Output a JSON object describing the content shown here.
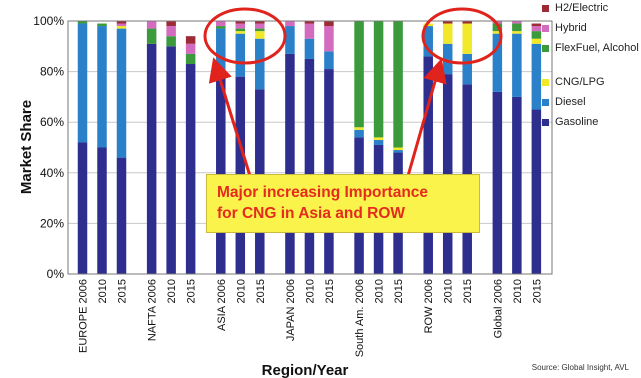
{
  "chart_data": {
    "type": "bar",
    "stacked": true,
    "ylabel": "Market Share",
    "xlabel": "Region/Year",
    "ylim": [
      0,
      100
    ],
    "yticks": [
      "0%",
      "20%",
      "40%",
      "60%",
      "80%",
      "100%"
    ],
    "grid": true,
    "legend_position": "right",
    "categories": [
      "EUROPE 2006",
      "2010",
      "2015",
      "NAFTA 2006",
      "2010",
      "2015",
      "ASIA 2006",
      "2010",
      "2015",
      "JAPAN 2006",
      "2010",
      "2015",
      "South Am. 2006",
      "2010",
      "2015",
      "ROW 2006",
      "2010",
      "2015",
      "Global 2006",
      "2010",
      "2015"
    ],
    "groups": [
      "EUROPE",
      "NAFTA",
      "ASIA",
      "JAPAN",
      "South Am.",
      "ROW",
      "Global"
    ],
    "series": [
      {
        "name": "Gasoline",
        "color": "#2e2e8e",
        "values": [
          52,
          50,
          46,
          91,
          90,
          83,
          80,
          78,
          73,
          87,
          85,
          81,
          54,
          51,
          48,
          86,
          79,
          75,
          72,
          70,
          65
        ]
      },
      {
        "name": "Diesel",
        "color": "#2a80c9",
        "values": [
          47,
          48,
          51,
          0,
          0,
          0,
          17,
          17,
          20,
          11,
          8,
          7,
          3,
          2,
          1,
          12,
          12,
          12,
          23,
          25,
          26
        ]
      },
      {
        "name": "CNG/LPG",
        "color": "#f2e82a",
        "values": [
          0,
          0,
          1,
          0,
          0,
          0,
          0,
          1,
          3,
          0,
          0,
          0,
          1,
          1,
          1,
          1,
          8,
          12,
          1,
          1,
          2
        ]
      },
      {
        "name": "FlexFuel, Alcohol",
        "color": "#3a9a3c",
        "values": [
          1,
          1,
          0,
          6,
          4,
          4,
          1,
          1,
          1,
          0,
          0,
          0,
          42,
          46,
          50,
          0,
          0,
          0,
          3,
          3,
          3
        ]
      },
      {
        "name": "Hybrid",
        "color": "#d36cbf",
        "values": [
          0,
          0,
          1,
          3,
          4,
          4,
          2,
          2,
          2,
          2,
          6,
          10,
          0,
          0,
          0,
          0,
          0,
          0,
          1,
          1,
          2
        ]
      },
      {
        "name": "H2/Electric",
        "color": "#9c2b35",
        "values": [
          0,
          0,
          1,
          0,
          2,
          3,
          0,
          1,
          1,
          0,
          1,
          2,
          0,
          0,
          0,
          0,
          1,
          1,
          0,
          0,
          1
        ]
      }
    ]
  },
  "legend": [
    {
      "label": "H2/Electric",
      "color": "#9c2b35"
    },
    {
      "label": "Hybrid",
      "color": "#d36cbf"
    },
    {
      "label": "FlexFuel, Alcohol",
      "color": "#3a9a3c"
    },
    {
      "label": "CNG/LPG",
      "color": "#f2e82a"
    },
    {
      "label": "Diesel",
      "color": "#2a80c9"
    },
    {
      "label": "Gasoline",
      "color": "#2e2e8e"
    }
  ],
  "callout": {
    "line1": "Major increasing Importance",
    "line2": "for CNG in Asia and ROW"
  },
  "source": "Source: Global Insight, AVL",
  "annotation_color": "#e0231c"
}
